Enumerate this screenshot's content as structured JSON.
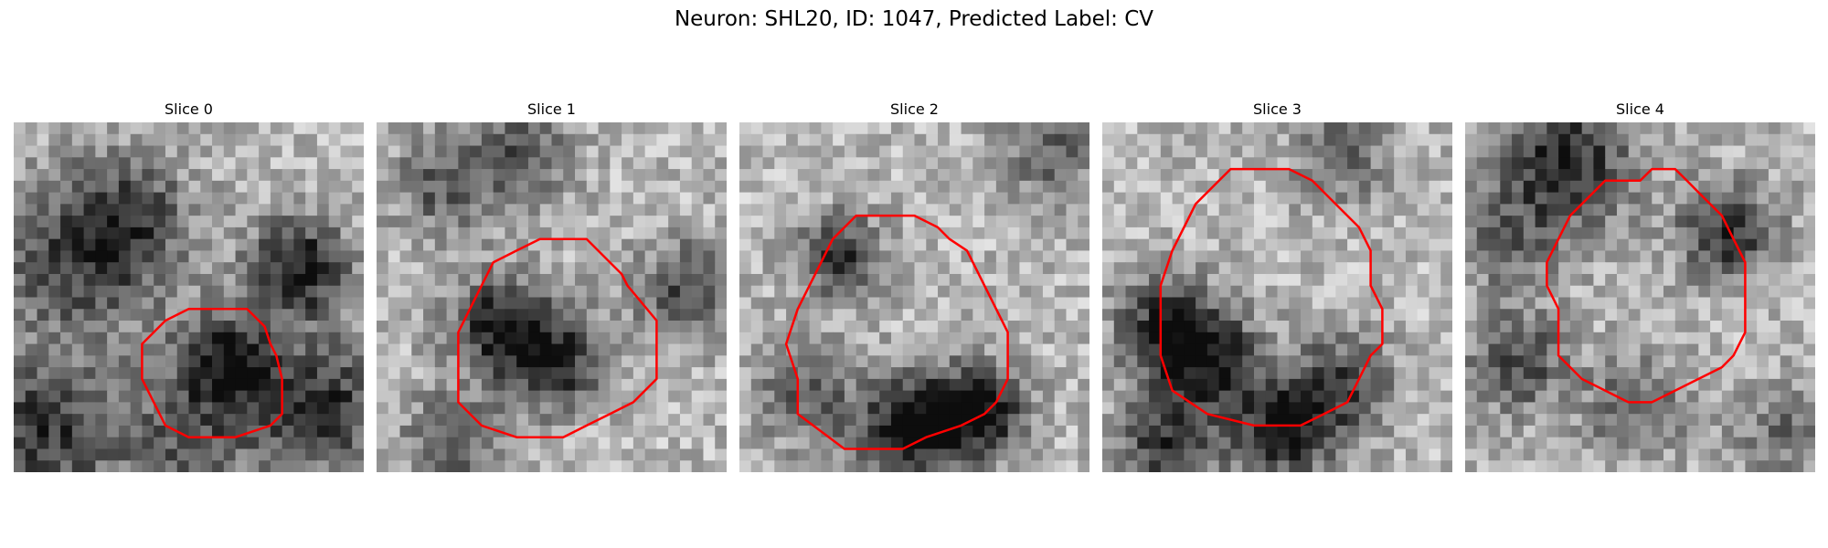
{
  "figure": {
    "title": "Neuron: SHL20, ID: 1047, Predicted Label: CV"
  },
  "colors": {
    "contour": "#ff0000",
    "background": "#ffffff"
  },
  "panels": [
    {
      "title": "Slice 0",
      "contour": [
        [
          18,
          16
        ],
        [
          20,
          16
        ],
        [
          21.5,
          17.5
        ],
        [
          22,
          19
        ],
        [
          22.5,
          20
        ],
        [
          23,
          22
        ],
        [
          23,
          25
        ],
        [
          22,
          26
        ],
        [
          19,
          27
        ],
        [
          15,
          27
        ],
        [
          13,
          26
        ],
        [
          12,
          24
        ],
        [
          11,
          22
        ],
        [
          11,
          19
        ],
        [
          13,
          17
        ],
        [
          15,
          16
        ]
      ]
    },
    {
      "title": "Slice 1",
      "contour": [
        [
          16,
          10
        ],
        [
          18,
          10
        ],
        [
          20,
          12
        ],
        [
          21,
          13
        ],
        [
          21.5,
          14
        ],
        [
          24,
          17
        ],
        [
          24,
          22
        ],
        [
          22,
          24
        ],
        [
          20,
          25
        ],
        [
          18,
          26
        ],
        [
          16,
          27
        ],
        [
          12,
          27
        ],
        [
          9,
          26
        ],
        [
          7,
          24
        ],
        [
          7,
          18
        ],
        [
          8,
          16
        ],
        [
          9,
          14
        ],
        [
          10,
          12
        ],
        [
          12,
          11
        ],
        [
          14,
          10
        ]
      ]
    },
    {
      "title": "Slice 2",
      "contour": [
        [
          10,
          8
        ],
        [
          15,
          8
        ],
        [
          17,
          9
        ],
        [
          18,
          10
        ],
        [
          19.5,
          11
        ],
        [
          21,
          14
        ],
        [
          22,
          16
        ],
        [
          23,
          18
        ],
        [
          23,
          22
        ],
        [
          22,
          24
        ],
        [
          21,
          25
        ],
        [
          19,
          26
        ],
        [
          16,
          27
        ],
        [
          14,
          28
        ],
        [
          9,
          28
        ],
        [
          5,
          25
        ],
        [
          5,
          22
        ],
        [
          4,
          19
        ],
        [
          5,
          16
        ],
        [
          6,
          14
        ],
        [
          7,
          12
        ],
        [
          8,
          10
        ]
      ]
    },
    {
      "title": "Slice 3",
      "contour": [
        [
          11,
          4
        ],
        [
          16,
          4
        ],
        [
          18,
          5
        ],
        [
          19,
          6
        ],
        [
          20,
          7
        ],
        [
          21,
          8
        ],
        [
          22,
          9
        ],
        [
          23,
          11
        ],
        [
          23,
          14
        ],
        [
          24,
          16
        ],
        [
          24,
          19
        ],
        [
          23,
          20
        ],
        [
          22,
          22
        ],
        [
          21,
          24
        ],
        [
          19,
          25
        ],
        [
          17,
          26
        ],
        [
          13,
          26
        ],
        [
          9,
          25
        ],
        [
          6,
          23
        ],
        [
          5,
          20
        ],
        [
          5,
          14
        ],
        [
          6,
          11
        ],
        [
          7,
          9
        ],
        [
          8,
          7
        ],
        [
          10,
          5
        ]
      ]
    },
    {
      "title": "Slice 4",
      "contour": [
        [
          12,
          5
        ],
        [
          15,
          5
        ],
        [
          16,
          4
        ],
        [
          18,
          4
        ],
        [
          19,
          5
        ],
        [
          20,
          6
        ],
        [
          21,
          7
        ],
        [
          22,
          8
        ],
        [
          23,
          10
        ],
        [
          24,
          12
        ],
        [
          24,
          18
        ],
        [
          23,
          20
        ],
        [
          22,
          21
        ],
        [
          20,
          22
        ],
        [
          18,
          23
        ],
        [
          16,
          24
        ],
        [
          14,
          24
        ],
        [
          12,
          23
        ],
        [
          10,
          22
        ],
        [
          8,
          20
        ],
        [
          8,
          16
        ],
        [
          7,
          14
        ],
        [
          7,
          12
        ],
        [
          8,
          10
        ],
        [
          9,
          8
        ],
        [
          11,
          6
        ]
      ]
    }
  ]
}
